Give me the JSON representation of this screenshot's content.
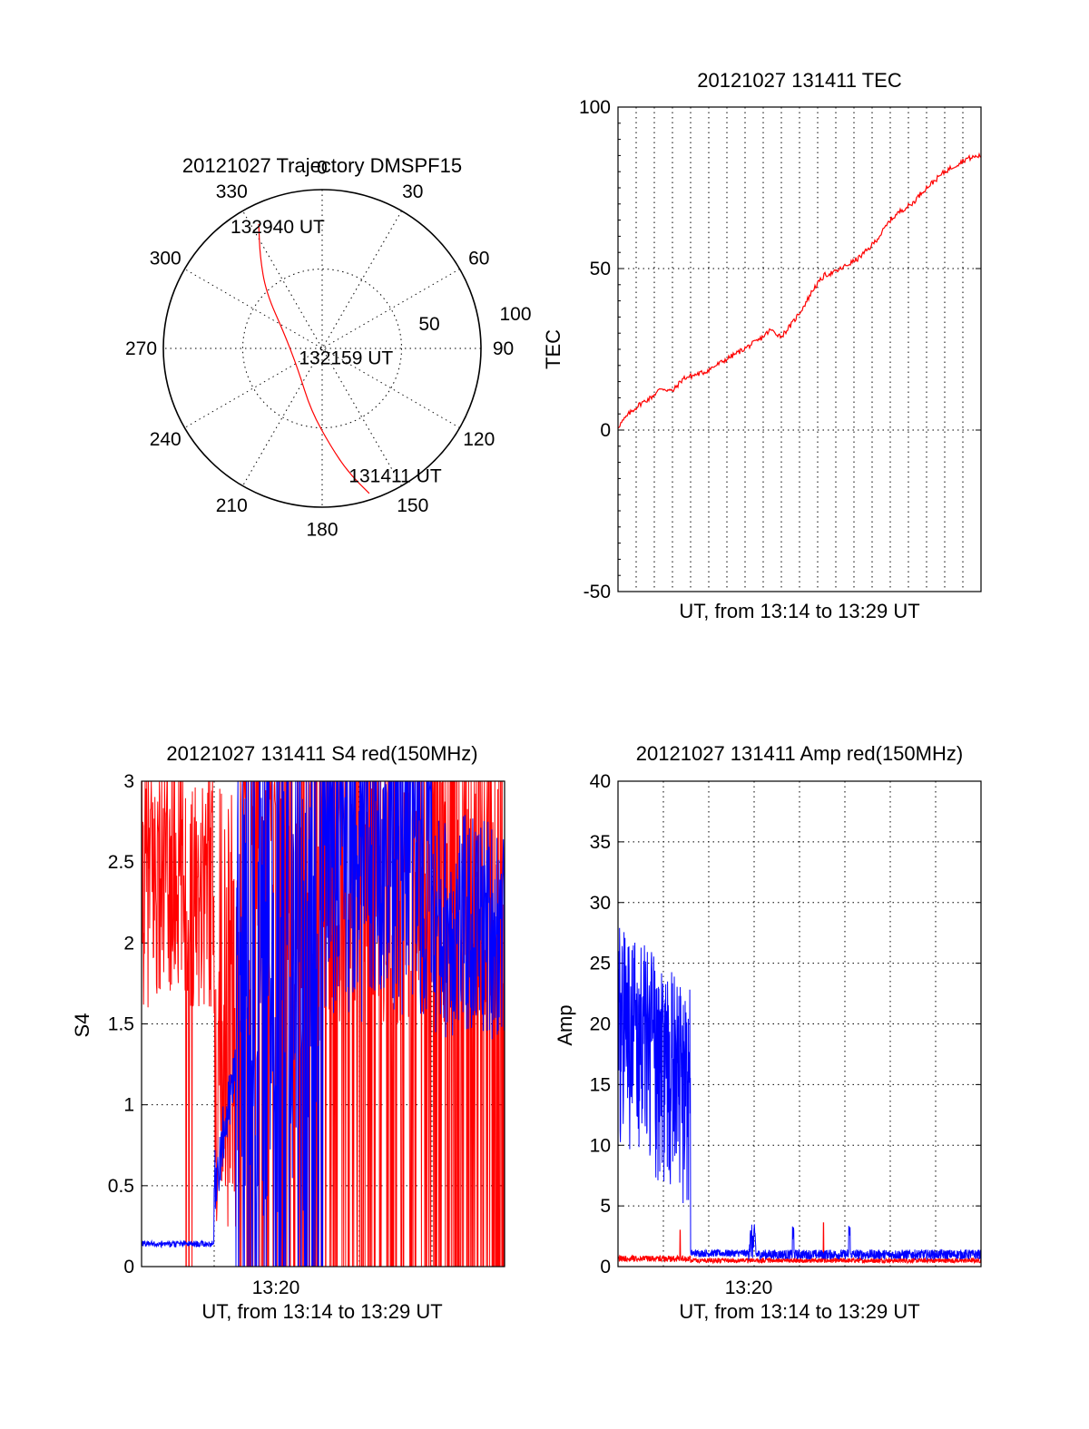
{
  "chart_data": [
    {
      "id": "trajectory",
      "type": "polar",
      "title": "20121027 Trajectory DMSPF15",
      "angle_labels": [
        "0",
        "30",
        "60",
        "90",
        "120",
        "150",
        "180",
        "210",
        "240",
        "270",
        "300",
        "330"
      ],
      "radial_labels": [
        "50",
        "100"
      ],
      "r_max": 100,
      "grid": true,
      "series": [
        {
          "color": "#ff0000",
          "points": [
            {
              "az": 162,
              "r": 96
            },
            {
              "az": 168,
              "r": 80
            },
            {
              "az": 175,
              "r": 62
            },
            {
              "az": 190,
              "r": 40
            },
            {
              "az": 230,
              "r": 20
            },
            {
              "az": 290,
              "r": 25
            },
            {
              "az": 315,
              "r": 50
            },
            {
              "az": 326,
              "r": 70
            },
            {
              "az": 333,
              "r": 88
            }
          ]
        }
      ],
      "annotations": [
        {
          "text": "132940 UT",
          "az": 340,
          "r": 82
        },
        {
          "text": "132159 UT",
          "az": 110,
          "r": 16
        },
        {
          "text": "131411 UT",
          "az": 150,
          "r": 92
        }
      ]
    },
    {
      "id": "tec",
      "type": "line",
      "title": "20121027 131411 TEC",
      "xlabel": "UT, from 13:14 to 13:29 UT",
      "ylabel": "TEC",
      "ylim": [
        -50,
        100
      ],
      "yticks": [
        "-50",
        "0",
        "50",
        "100"
      ],
      "grid": true,
      "series": [
        {
          "color": "#ff0000",
          "x": [
            0,
            0.03,
            0.06,
            0.09,
            0.12,
            0.15,
            0.18,
            0.21,
            0.24,
            0.27,
            0.3,
            0.33,
            0.36,
            0.39,
            0.42,
            0.45,
            0.48,
            0.51,
            0.54,
            0.57,
            0.6,
            0.63,
            0.66,
            0.69,
            0.72,
            0.75,
            0.78,
            0.81,
            0.84,
            0.87,
            0.9,
            0.93,
            0.96,
            1.0
          ],
          "values": [
            1,
            5,
            8,
            10,
            13,
            12,
            16,
            17,
            18,
            20,
            22,
            24,
            26,
            28,
            31,
            29,
            33,
            38,
            44,
            48,
            49,
            51,
            53,
            56,
            60,
            65,
            68,
            70,
            74,
            77,
            80,
            82,
            84,
            85
          ]
        }
      ]
    },
    {
      "id": "s4",
      "type": "line",
      "title": "20121027 131411 S4 red(150MHz)",
      "xlabel": "UT, from 13:14 to 13:29 UT",
      "ylabel": "S4",
      "ylim": [
        0,
        3
      ],
      "yticks": [
        "0",
        "0.5",
        "1",
        "1.5",
        "2",
        "2.5",
        "3"
      ],
      "xticks": [
        {
          "pos": 0.37,
          "label": "13:20"
        }
      ],
      "grid": true,
      "series": [
        {
          "color": "#ff0000",
          "style": "noisy-spikes"
        },
        {
          "color": "#0000ff",
          "style": "noisy-spikes"
        }
      ]
    },
    {
      "id": "amp",
      "type": "line",
      "title": "20121027 131411 Amp red(150MHz)",
      "xlabel": "UT, from 13:14 to 13:29 UT",
      "ylabel": "Amp",
      "ylim": [
        0,
        40
      ],
      "yticks": [
        "0",
        "5",
        "10",
        "15",
        "20",
        "25",
        "30",
        "35",
        "40"
      ],
      "xticks": [
        {
          "pos": 0.36,
          "label": "13:20"
        }
      ],
      "grid": true,
      "series": [
        {
          "color": "#ff0000",
          "style": "noisy"
        },
        {
          "color": "#0000ff",
          "style": "noisy"
        }
      ]
    }
  ]
}
